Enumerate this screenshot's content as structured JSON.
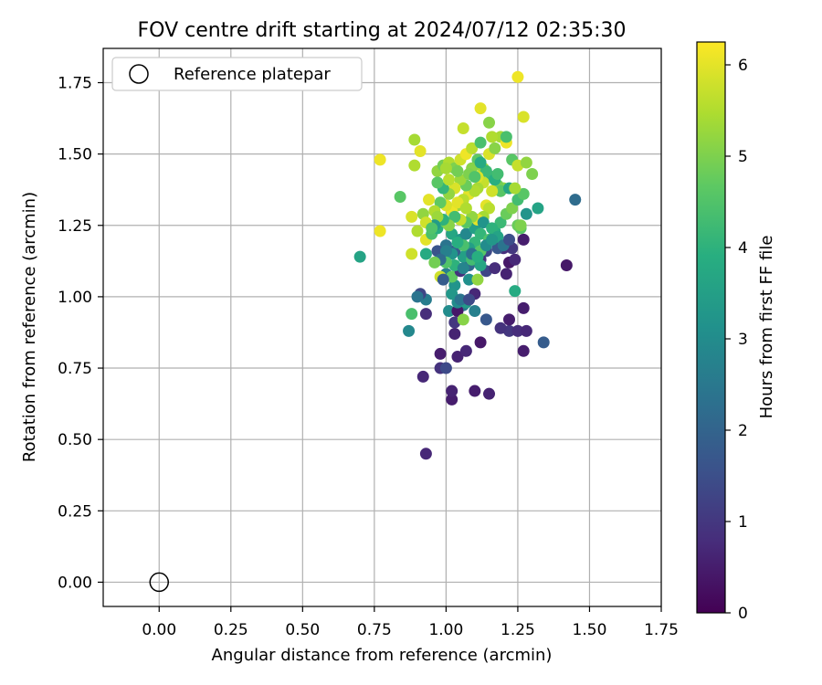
{
  "chart_data": {
    "type": "scatter",
    "title": "FOV centre drift starting at 2024/07/12 02:35:30",
    "xlabel": "Angular distance from reference (arcmin)",
    "ylabel": "Rotation from reference (arcmin)",
    "xlim": [
      -0.195,
      1.75
    ],
    "ylim": [
      -0.085,
      1.87
    ],
    "xticks": [
      "0.00",
      "0.25",
      "0.50",
      "0.75",
      "1.00",
      "1.25",
      "1.50",
      "1.75"
    ],
    "yticks": [
      "0.00",
      "0.25",
      "0.50",
      "0.75",
      "1.00",
      "1.25",
      "1.50",
      "1.75"
    ],
    "grid": true,
    "legend": {
      "placement": "top-left",
      "entries": [
        "Reference platepar"
      ]
    },
    "reference_point": {
      "x": 0.0,
      "y": 0.0,
      "label": "Reference platepar"
    },
    "colorbar": {
      "label": "Hours from first FF file",
      "min": 0,
      "max": 6.25,
      "ticks": [
        "0",
        "1",
        "2",
        "3",
        "4",
        "5",
        "6"
      ],
      "colormap": "viridis"
    },
    "series": [
      {
        "note": "points as [x, y, hours]",
        "points": [
          [
            0.93,
            0.45,
            0.7
          ],
          [
            1.15,
            0.66,
            0.6
          ],
          [
            1.1,
            0.67,
            0.5
          ],
          [
            1.02,
            0.64,
            0.5
          ],
          [
            1.02,
            0.67,
            0.6
          ],
          [
            0.92,
            0.72,
            0.7
          ],
          [
            0.98,
            0.75,
            0.9
          ],
          [
            1.0,
            0.75,
            1.4
          ],
          [
            0.98,
            0.8,
            0.5
          ],
          [
            1.04,
            0.79,
            0.6
          ],
          [
            1.07,
            0.81,
            0.7
          ],
          [
            1.12,
            0.84,
            0.4
          ],
          [
            1.03,
            0.87,
            0.6
          ],
          [
            1.22,
            0.88,
            1.0
          ],
          [
            1.25,
            0.88,
            0.8
          ],
          [
            1.28,
            0.88,
            0.7
          ],
          [
            1.34,
            0.84,
            1.8
          ],
          [
            1.27,
            0.81,
            0.5
          ],
          [
            1.19,
            0.89,
            0.9
          ],
          [
            1.22,
            0.92,
            0.5
          ],
          [
            1.14,
            0.92,
            1.7
          ],
          [
            1.03,
            0.91,
            1.0
          ],
          [
            0.93,
            0.94,
            0.8
          ],
          [
            0.87,
            0.88,
            2.9
          ],
          [
            1.42,
            1.11,
            0.4
          ],
          [
            1.45,
            1.34,
            2.2
          ],
          [
            1.27,
            0.96,
            0.5
          ],
          [
            1.24,
            1.02,
            3.8
          ],
          [
            1.1,
            1.01,
            0.7
          ],
          [
            1.06,
            0.97,
            2.5
          ],
          [
            1.1,
            0.95,
            2.7
          ],
          [
            1.01,
            0.95,
            3.0
          ],
          [
            1.04,
            0.95,
            0.4
          ],
          [
            0.93,
            0.99,
            2.6
          ],
          [
            0.91,
            1.01,
            1.3
          ],
          [
            0.9,
            1.0,
            2.4
          ],
          [
            0.88,
            0.94,
            4.4
          ],
          [
            1.06,
            0.92,
            5.1
          ],
          [
            1.04,
            0.98,
            3.0
          ],
          [
            1.07,
            0.98,
            3.4
          ],
          [
            1.0,
            1.08,
            2.7
          ],
          [
            0.98,
            1.07,
            5.8
          ],
          [
            1.03,
            1.04,
            3.2
          ],
          [
            1.02,
            1.07,
            4.7
          ],
          [
            1.05,
            1.09,
            0.9
          ],
          [
            1.08,
            1.06,
            3.1
          ],
          [
            1.11,
            1.06,
            5.2
          ],
          [
            1.14,
            1.09,
            1.3
          ],
          [
            1.17,
            1.1,
            0.8
          ],
          [
            1.21,
            1.08,
            0.6
          ],
          [
            1.22,
            1.12,
            0.4
          ],
          [
            1.24,
            1.13,
            0.7
          ],
          [
            1.27,
            1.2,
            0.5
          ],
          [
            1.26,
            1.24,
            4.6
          ],
          [
            1.28,
            1.29,
            3.2
          ],
          [
            1.32,
            1.31,
            3.6
          ],
          [
            1.23,
            1.17,
            1.0
          ],
          [
            1.2,
            1.17,
            0.8
          ],
          [
            1.18,
            1.17,
            1.7
          ],
          [
            1.14,
            1.16,
            1.4
          ],
          [
            1.12,
            1.13,
            0.9
          ],
          [
            1.08,
            1.11,
            2.1
          ],
          [
            1.06,
            1.14,
            3.5
          ],
          [
            1.03,
            1.16,
            1.8
          ],
          [
            1.0,
            1.18,
            2.4
          ],
          [
            0.97,
            1.16,
            1.6
          ],
          [
            0.93,
            1.15,
            3.8
          ],
          [
            0.88,
            1.15,
            5.8
          ],
          [
            0.7,
            1.14,
            3.6
          ],
          [
            0.77,
            1.23,
            6.1
          ],
          [
            0.88,
            1.28,
            5.9
          ],
          [
            0.9,
            1.23,
            5.5
          ],
          [
            0.93,
            1.2,
            6.0
          ],
          [
            0.95,
            1.22,
            4.4
          ],
          [
            0.97,
            1.24,
            3.9
          ],
          [
            1.0,
            1.26,
            4.8
          ],
          [
            1.02,
            1.22,
            3.7
          ],
          [
            1.05,
            1.2,
            3.3
          ],
          [
            1.07,
            1.22,
            2.9
          ],
          [
            1.1,
            1.24,
            3.5
          ],
          [
            1.12,
            1.22,
            4.1
          ],
          [
            1.15,
            1.2,
            4.5
          ],
          [
            1.17,
            1.23,
            3.9
          ],
          [
            1.19,
            1.26,
            4.2
          ],
          [
            1.21,
            1.29,
            4.8
          ],
          [
            1.23,
            1.31,
            5.0
          ],
          [
            1.25,
            1.34,
            4.3
          ],
          [
            1.27,
            1.36,
            4.6
          ],
          [
            1.2,
            1.38,
            5.2
          ],
          [
            1.18,
            1.39,
            4.9
          ],
          [
            1.16,
            1.42,
            4.1
          ],
          [
            1.13,
            1.4,
            5.7
          ],
          [
            1.11,
            1.38,
            5.4
          ],
          [
            1.08,
            1.36,
            6.0
          ],
          [
            1.06,
            1.34,
            5.6
          ],
          [
            1.04,
            1.32,
            5.3
          ],
          [
            1.02,
            1.3,
            6.1
          ],
          [
            1.0,
            1.32,
            5.9
          ],
          [
            0.98,
            1.33,
            4.7
          ],
          [
            0.96,
            1.3,
            5.5
          ],
          [
            0.94,
            1.34,
            6.0
          ],
          [
            0.92,
            1.29,
            5.2
          ],
          [
            0.84,
            1.35,
            4.6
          ],
          [
            0.77,
            1.48,
            6.1
          ],
          [
            0.89,
            1.46,
            5.5
          ],
          [
            0.89,
            1.55,
            5.4
          ],
          [
            0.91,
            1.51,
            6.0
          ],
          [
            0.97,
            1.44,
            5.2
          ],
          [
            0.99,
            1.46,
            4.9
          ],
          [
            1.01,
            1.47,
            5.5
          ],
          [
            1.03,
            1.45,
            5.0
          ],
          [
            1.05,
            1.48,
            5.8
          ],
          [
            1.07,
            1.5,
            6.1
          ],
          [
            1.09,
            1.52,
            5.6
          ],
          [
            1.11,
            1.48,
            4.7
          ],
          [
            1.13,
            1.45,
            5.3
          ],
          [
            1.15,
            1.5,
            5.9
          ],
          [
            1.17,
            1.52,
            5.1
          ],
          [
            1.19,
            1.56,
            5.4
          ],
          [
            1.21,
            1.54,
            6.1
          ],
          [
            1.21,
            1.56,
            4.4
          ],
          [
            1.23,
            1.48,
            4.6
          ],
          [
            1.25,
            1.46,
            5.7
          ],
          [
            1.28,
            1.47,
            5.2
          ],
          [
            1.3,
            1.43,
            5.0
          ],
          [
            1.27,
            1.63,
            5.9
          ],
          [
            1.25,
            1.77,
            6.1
          ],
          [
            1.12,
            1.66,
            6.0
          ],
          [
            1.15,
            1.61,
            5.1
          ],
          [
            1.16,
            1.56,
            5.5
          ],
          [
            1.06,
            1.59,
            5.7
          ],
          [
            1.12,
            1.54,
            4.4
          ],
          [
            1.09,
            1.45,
            5.1
          ],
          [
            1.14,
            1.44,
            4.2
          ],
          [
            1.12,
            1.47,
            3.8
          ],
          [
            1.17,
            1.41,
            3.9
          ],
          [
            1.18,
            1.43,
            4.3
          ],
          [
            1.19,
            1.37,
            4.6
          ],
          [
            1.22,
            1.38,
            3.7
          ],
          [
            1.24,
            1.38,
            5.4
          ],
          [
            1.16,
            1.37,
            5.8
          ],
          [
            1.1,
            1.37,
            5.5
          ],
          [
            1.07,
            1.39,
            4.8
          ],
          [
            1.05,
            1.41,
            5.3
          ],
          [
            1.03,
            1.38,
            5.9
          ],
          [
            1.01,
            1.36,
            5.2
          ],
          [
            0.99,
            1.38,
            4.1
          ],
          [
            0.97,
            1.4,
            4.6
          ],
          [
            1.08,
            1.43,
            5.0
          ],
          [
            1.11,
            1.42,
            5.9
          ],
          [
            1.14,
            1.32,
            6.0
          ],
          [
            1.15,
            1.31,
            5.6
          ],
          [
            1.13,
            1.28,
            5.4
          ],
          [
            1.11,
            1.27,
            6.0
          ],
          [
            1.09,
            1.28,
            5.2
          ],
          [
            1.07,
            1.26,
            4.6
          ],
          [
            1.05,
            1.27,
            5.7
          ],
          [
            1.03,
            1.28,
            4.3
          ],
          [
            1.01,
            1.25,
            5.1
          ],
          [
            0.99,
            1.27,
            4.0
          ],
          [
            0.97,
            1.28,
            5.3
          ],
          [
            0.96,
            1.25,
            3.4
          ],
          [
            1.13,
            1.26,
            3.2
          ],
          [
            1.16,
            1.24,
            4.0
          ],
          [
            1.18,
            1.21,
            3.6
          ],
          [
            1.2,
            1.18,
            2.4
          ],
          [
            1.22,
            1.2,
            1.5
          ],
          [
            1.25,
            1.25,
            4.8
          ],
          [
            1.26,
            1.25,
            5.0
          ],
          [
            1.1,
            1.19,
            4.1
          ],
          [
            1.08,
            1.17,
            3.5
          ],
          [
            1.06,
            1.18,
            4.4
          ],
          [
            1.04,
            1.19,
            3.9
          ],
          [
            1.02,
            1.15,
            3.2
          ],
          [
            1.0,
            1.16,
            2.7
          ],
          [
            1.12,
            1.16,
            4.6
          ],
          [
            1.14,
            1.18,
            3.0
          ],
          [
            1.16,
            1.2,
            3.3
          ],
          [
            1.03,
            1.11,
            4.0
          ],
          [
            1.06,
            1.1,
            2.8
          ],
          [
            1.09,
            1.13,
            4.3
          ],
          [
            1.12,
            1.11,
            3.7
          ],
          [
            1.0,
            1.12,
            4.5
          ],
          [
            0.98,
            1.13,
            2.2
          ],
          [
            0.96,
            1.12,
            4.9
          ],
          [
            1.04,
            1.33,
            6.0
          ],
          [
            1.07,
            1.31,
            5.5
          ],
          [
            1.01,
            1.41,
            5.6
          ],
          [
            1.04,
            1.44,
            4.9
          ],
          [
            1.1,
            1.42,
            4.5
          ],
          [
            1.0,
            1.45,
            5.4
          ],
          [
            0.93,
            1.26,
            5.8
          ],
          [
            0.95,
            1.24,
            4.5
          ],
          [
            1.09,
            1.15,
            2.3
          ],
          [
            1.11,
            1.14,
            3.9
          ],
          [
            0.99,
            1.06,
            1.8
          ],
          [
            1.02,
            1.01,
            3.3
          ],
          [
            1.05,
            0.99,
            2.4
          ],
          [
            1.08,
            0.99,
            1.4
          ]
        ]
      }
    ]
  }
}
